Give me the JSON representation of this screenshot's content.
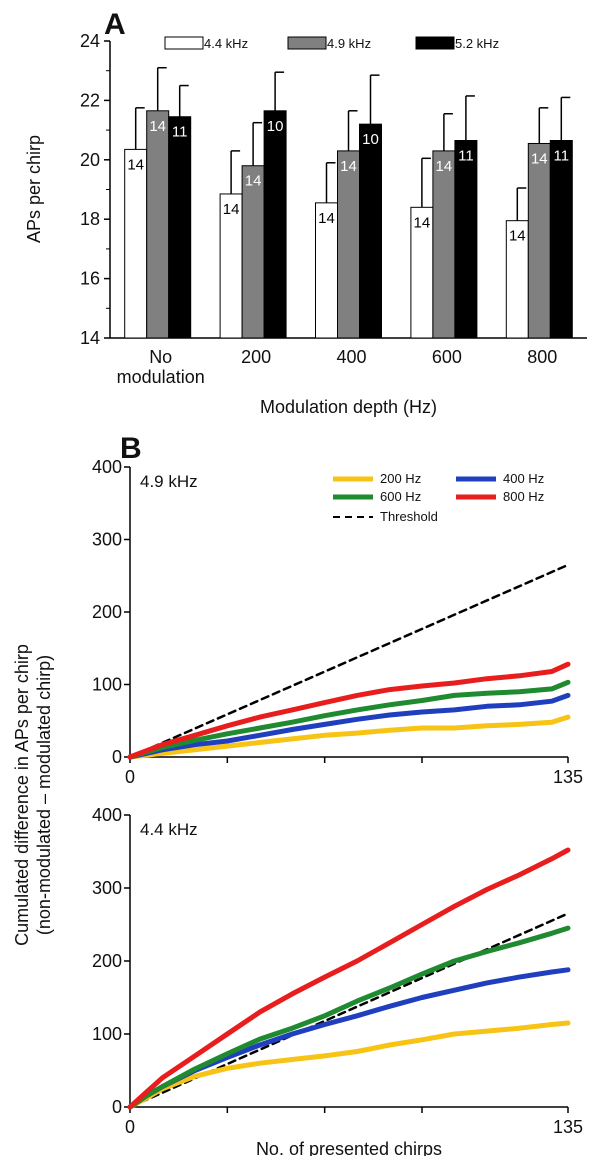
{
  "figure": {
    "panel_a_letter": "A",
    "panel_b_letter": "B",
    "shared_ylabel_line1": "Cumulated difference in APs per chirp",
    "shared_ylabel_line2": "(non-modulated – modulated chirp)"
  },
  "chart_data": [
    {
      "type": "bar",
      "panel": "A",
      "title": "",
      "xlabel": "Modulation depth (Hz)",
      "ylabel": "APs per chirp",
      "ylim": [
        14,
        24
      ],
      "yticks": [
        "14",
        "16",
        "18",
        "20",
        "22",
        "24"
      ],
      "categories": [
        "No modulation",
        "200",
        "400",
        "600",
        "800"
      ],
      "category_lines": [
        [
          "No",
          "modulation"
        ],
        [
          "200"
        ],
        [
          "400"
        ],
        [
          "600"
        ],
        [
          "800"
        ]
      ],
      "legend_position": "top",
      "grid": false,
      "series": [
        {
          "name": "4.4 kHz",
          "color": "#ffffff",
          "label_color": "#000000",
          "values": [
            20.35,
            18.85,
            18.55,
            18.4,
            17.95
          ],
          "error_upper": [
            21.75,
            20.3,
            19.9,
            20.05,
            19.05
          ],
          "n_labels": [
            "14",
            "14",
            "14",
            "14",
            "14"
          ]
        },
        {
          "name": "4.9 kHz",
          "color": "#808080",
          "label_color": "#ffffff",
          "values": [
            21.65,
            19.8,
            20.3,
            20.3,
            20.55
          ],
          "error_upper": [
            23.1,
            21.25,
            21.65,
            21.55,
            21.75
          ],
          "n_labels": [
            "14",
            "14",
            "14",
            "14",
            "14"
          ]
        },
        {
          "name": "5.2 kHz",
          "color": "#000000",
          "label_color": "#ffffff",
          "values": [
            21.45,
            21.65,
            21.2,
            20.65,
            20.65
          ],
          "error_upper": [
            22.5,
            22.95,
            22.85,
            22.15,
            22.1
          ],
          "n_labels": [
            "11",
            "10",
            "10",
            "11",
            "11"
          ]
        }
      ]
    },
    {
      "type": "line",
      "panel": "B-top",
      "title": "4.9 kHz",
      "xlabel": "",
      "ylabel": "",
      "xlim": [
        0,
        135
      ],
      "ylim": [
        0,
        400
      ],
      "xticks": [
        0,
        30,
        60,
        90,
        135
      ],
      "xtick_labels": [
        "0",
        "",
        "",
        "",
        "135"
      ],
      "yticks": [
        "0",
        "100",
        "200",
        "300",
        "400"
      ],
      "legend_position": "top-right",
      "grid": false,
      "series": [
        {
          "name": "200 Hz",
          "color": "#f7c315",
          "dashed": false,
          "x": [
            0,
            10,
            20,
            30,
            40,
            50,
            60,
            70,
            80,
            90,
            100,
            110,
            120,
            130,
            135
          ],
          "y": [
            0,
            5,
            10,
            15,
            20,
            25,
            30,
            33,
            37,
            40,
            40,
            43,
            45,
            48,
            55
          ]
        },
        {
          "name": "400 Hz",
          "color": "#1f3fbf",
          "dashed": false,
          "x": [
            0,
            10,
            20,
            30,
            40,
            50,
            60,
            70,
            80,
            90,
            100,
            110,
            120,
            130,
            135
          ],
          "y": [
            0,
            10,
            17,
            22,
            30,
            38,
            45,
            52,
            58,
            62,
            65,
            70,
            72,
            77,
            85
          ]
        },
        {
          "name": "600 Hz",
          "color": "#1f8a2f",
          "dashed": false,
          "x": [
            0,
            10,
            20,
            30,
            40,
            50,
            60,
            70,
            80,
            90,
            100,
            110,
            120,
            130,
            135
          ],
          "y": [
            0,
            13,
            23,
            32,
            40,
            48,
            57,
            65,
            72,
            78,
            85,
            88,
            90,
            94,
            103
          ]
        },
        {
          "name": "800 Hz",
          "color": "#e81e1e",
          "dashed": false,
          "x": [
            0,
            10,
            20,
            30,
            40,
            50,
            60,
            70,
            80,
            90,
            100,
            110,
            120,
            130,
            135
          ],
          "y": [
            0,
            17,
            30,
            43,
            55,
            65,
            75,
            85,
            93,
            98,
            102,
            108,
            112,
            118,
            128
          ]
        },
        {
          "name": "Threshold",
          "color": "#000000",
          "dashed": true,
          "x": [
            0,
            135
          ],
          "y": [
            0,
            265
          ]
        }
      ]
    },
    {
      "type": "line",
      "panel": "B-bottom",
      "title": "4.4 kHz",
      "xlabel": "No. of presented chirps",
      "ylabel": "",
      "xlim": [
        0,
        135
      ],
      "ylim": [
        0,
        400
      ],
      "xticks": [
        0,
        30,
        60,
        90,
        135
      ],
      "xtick_labels": [
        "0",
        "",
        "",
        "",
        "135"
      ],
      "yticks": [
        "0",
        "100",
        "200",
        "300",
        "400"
      ],
      "grid": false,
      "series": [
        {
          "name": "200 Hz",
          "color": "#f7c315",
          "dashed": false,
          "x": [
            0,
            5,
            10,
            20,
            30,
            40,
            50,
            60,
            70,
            80,
            90,
            100,
            110,
            120,
            130,
            135
          ],
          "y": [
            0,
            12,
            25,
            42,
            53,
            60,
            65,
            70,
            76,
            85,
            92,
            100,
            104,
            108,
            113,
            115
          ]
        },
        {
          "name": "400 Hz",
          "color": "#1f3fbf",
          "dashed": false,
          "x": [
            0,
            5,
            10,
            20,
            30,
            40,
            50,
            60,
            70,
            80,
            90,
            100,
            110,
            120,
            130,
            135
          ],
          "y": [
            0,
            15,
            28,
            50,
            68,
            85,
            100,
            113,
            125,
            138,
            150,
            160,
            170,
            178,
            185,
            188
          ]
        },
        {
          "name": "600 Hz",
          "color": "#1f8a2f",
          "dashed": false,
          "x": [
            0,
            5,
            10,
            20,
            30,
            40,
            50,
            60,
            70,
            80,
            90,
            100,
            110,
            120,
            130,
            135
          ],
          "y": [
            0,
            15,
            28,
            52,
            73,
            93,
            108,
            125,
            145,
            163,
            182,
            200,
            213,
            225,
            238,
            245
          ]
        },
        {
          "name": "800 Hz",
          "color": "#e81e1e",
          "dashed": false,
          "x": [
            0,
            5,
            10,
            20,
            30,
            40,
            50,
            60,
            70,
            80,
            90,
            100,
            110,
            120,
            130,
            135
          ],
          "y": [
            0,
            20,
            40,
            70,
            100,
            130,
            155,
            178,
            200,
            225,
            250,
            275,
            298,
            318,
            340,
            352
          ]
        },
        {
          "name": "Threshold",
          "color": "#000000",
          "dashed": true,
          "x": [
            0,
            135
          ],
          "y": [
            0,
            265
          ]
        }
      ]
    }
  ]
}
